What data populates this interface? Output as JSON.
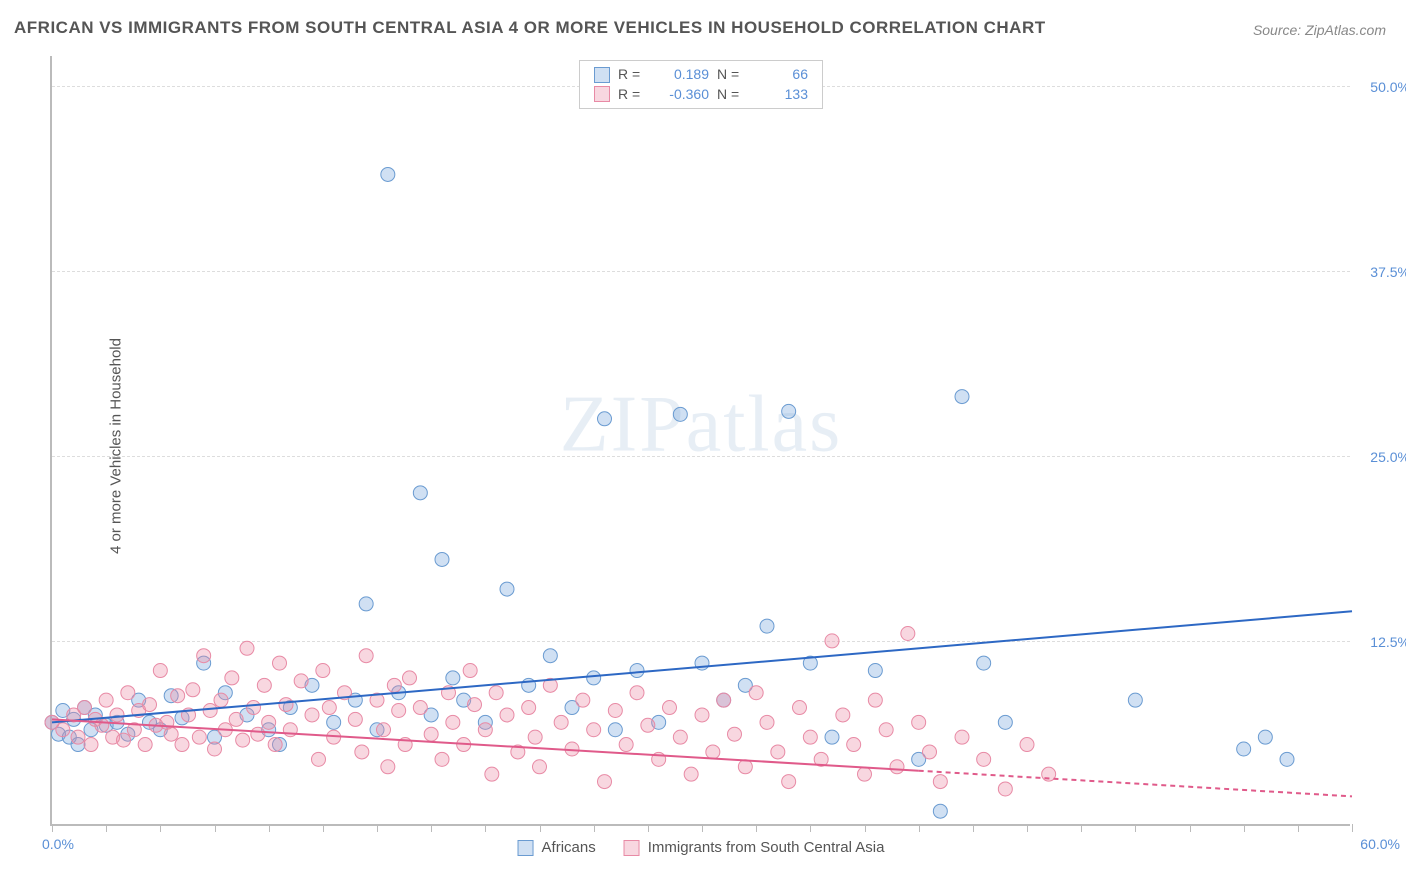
{
  "title": "AFRICAN VS IMMIGRANTS FROM SOUTH CENTRAL ASIA 4 OR MORE VEHICLES IN HOUSEHOLD CORRELATION CHART",
  "source": "Source: ZipAtlas.com",
  "y_axis_label": "4 or more Vehicles in Household",
  "watermark_a": "ZIP",
  "watermark_b": "atlas",
  "chart": {
    "type": "scatter",
    "xlim": [
      0,
      60
    ],
    "ylim": [
      0,
      52
    ],
    "x_min_label": "0.0%",
    "x_max_label": "60.0%",
    "y_ticks": [
      12.5,
      25.0,
      37.5,
      50.0
    ],
    "y_tick_labels": [
      "12.5%",
      "25.0%",
      "37.5%",
      "50.0%"
    ],
    "x_minor_ticks": [
      0,
      2.5,
      5,
      7.5,
      10,
      12.5,
      15,
      17.5,
      20,
      22.5,
      25,
      27.5,
      30,
      32.5,
      35,
      37.5,
      40,
      42.5,
      45,
      47.5,
      50,
      52.5,
      55,
      57.5,
      60
    ],
    "background_color": "#ffffff",
    "grid_color": "#dddddd",
    "series": [
      {
        "name": "Africans",
        "fill": "rgba(120,165,220,0.35)",
        "stroke": "#6a9bd1",
        "marker_radius": 7,
        "R": "0.189",
        "N": "66",
        "trend": {
          "x1": 0,
          "y1": 7.0,
          "x2": 60,
          "y2": 14.5,
          "color": "#2d68c4",
          "width": 2,
          "dash_from_x": null
        },
        "points": [
          [
            0,
            7.0
          ],
          [
            0.3,
            6.2
          ],
          [
            0.5,
            7.8
          ],
          [
            0.8,
            6.0
          ],
          [
            1,
            7.2
          ],
          [
            1.2,
            5.5
          ],
          [
            1.5,
            8.0
          ],
          [
            1.8,
            6.5
          ],
          [
            2,
            7.5
          ],
          [
            2.5,
            6.8
          ],
          [
            3,
            7.0
          ],
          [
            3.5,
            6.2
          ],
          [
            4,
            8.5
          ],
          [
            4.5,
            7.0
          ],
          [
            5,
            6.5
          ],
          [
            5.5,
            8.8
          ],
          [
            6,
            7.3
          ],
          [
            7,
            11.0
          ],
          [
            7.5,
            6.0
          ],
          [
            8,
            9.0
          ],
          [
            9,
            7.5
          ],
          [
            10,
            6.5
          ],
          [
            10.5,
            5.5
          ],
          [
            11,
            8.0
          ],
          [
            12,
            9.5
          ],
          [
            13,
            7.0
          ],
          [
            14,
            8.5
          ],
          [
            14.5,
            15.0
          ],
          [
            15,
            6.5
          ],
          [
            15.5,
            44.0
          ],
          [
            16,
            9.0
          ],
          [
            17,
            22.5
          ],
          [
            17.5,
            7.5
          ],
          [
            18,
            18.0
          ],
          [
            18.5,
            10.0
          ],
          [
            19,
            8.5
          ],
          [
            20,
            7.0
          ],
          [
            21,
            16.0
          ],
          [
            22,
            9.5
          ],
          [
            23,
            11.5
          ],
          [
            24,
            8.0
          ],
          [
            25,
            10.0
          ],
          [
            25.5,
            27.5
          ],
          [
            26,
            6.5
          ],
          [
            27,
            10.5
          ],
          [
            28,
            7.0
          ],
          [
            29,
            27.8
          ],
          [
            30,
            11.0
          ],
          [
            31,
            8.5
          ],
          [
            32,
            9.5
          ],
          [
            33,
            13.5
          ],
          [
            34,
            28.0
          ],
          [
            35,
            11.0
          ],
          [
            36,
            6.0
          ],
          [
            38,
            10.5
          ],
          [
            40,
            4.5
          ],
          [
            41,
            1.0
          ],
          [
            42,
            29.0
          ],
          [
            43,
            11.0
          ],
          [
            44,
            7.0
          ],
          [
            50,
            8.5
          ],
          [
            55,
            5.2
          ],
          [
            56,
            6.0
          ],
          [
            57,
            4.5
          ]
        ]
      },
      {
        "name": "Immigrants from South Central Asia",
        "fill": "rgba(235,140,165,0.35)",
        "stroke": "#e88aa5",
        "marker_radius": 7,
        "R": "-0.360",
        "N": "133",
        "trend": {
          "x1": 0,
          "y1": 7.2,
          "x2": 60,
          "y2": 2.0,
          "color": "#e05a8a",
          "width": 2,
          "dash_from_x": 40
        },
        "points": [
          [
            0,
            7.0
          ],
          [
            0.5,
            6.5
          ],
          [
            1,
            7.5
          ],
          [
            1.2,
            6.0
          ],
          [
            1.5,
            8.0
          ],
          [
            1.8,
            5.5
          ],
          [
            2,
            7.2
          ],
          [
            2.3,
            6.8
          ],
          [
            2.5,
            8.5
          ],
          [
            2.8,
            6.0
          ],
          [
            3,
            7.5
          ],
          [
            3.3,
            5.8
          ],
          [
            3.5,
            9.0
          ],
          [
            3.8,
            6.5
          ],
          [
            4,
            7.8
          ],
          [
            4.3,
            5.5
          ],
          [
            4.5,
            8.2
          ],
          [
            4.8,
            6.8
          ],
          [
            5,
            10.5
          ],
          [
            5.3,
            7.0
          ],
          [
            5.5,
            6.2
          ],
          [
            5.8,
            8.8
          ],
          [
            6,
            5.5
          ],
          [
            6.3,
            7.5
          ],
          [
            6.5,
            9.2
          ],
          [
            6.8,
            6.0
          ],
          [
            7,
            11.5
          ],
          [
            7.3,
            7.8
          ],
          [
            7.5,
            5.2
          ],
          [
            7.8,
            8.5
          ],
          [
            8,
            6.5
          ],
          [
            8.3,
            10.0
          ],
          [
            8.5,
            7.2
          ],
          [
            8.8,
            5.8
          ],
          [
            9,
            12.0
          ],
          [
            9.3,
            8.0
          ],
          [
            9.5,
            6.2
          ],
          [
            9.8,
            9.5
          ],
          [
            10,
            7.0
          ],
          [
            10.3,
            5.5
          ],
          [
            10.5,
            11.0
          ],
          [
            10.8,
            8.2
          ],
          [
            11,
            6.5
          ],
          [
            11.5,
            9.8
          ],
          [
            12,
            7.5
          ],
          [
            12.3,
            4.5
          ],
          [
            12.5,
            10.5
          ],
          [
            12.8,
            8.0
          ],
          [
            13,
            6.0
          ],
          [
            13.5,
            9.0
          ],
          [
            14,
            7.2
          ],
          [
            14.3,
            5.0
          ],
          [
            14.5,
            11.5
          ],
          [
            15,
            8.5
          ],
          [
            15.3,
            6.5
          ],
          [
            15.5,
            4.0
          ],
          [
            15.8,
            9.5
          ],
          [
            16,
            7.8
          ],
          [
            16.3,
            5.5
          ],
          [
            16.5,
            10.0
          ],
          [
            17,
            8.0
          ],
          [
            17.5,
            6.2
          ],
          [
            18,
            4.5
          ],
          [
            18.3,
            9.0
          ],
          [
            18.5,
            7.0
          ],
          [
            19,
            5.5
          ],
          [
            19.3,
            10.5
          ],
          [
            19.5,
            8.2
          ],
          [
            20,
            6.5
          ],
          [
            20.3,
            3.5
          ],
          [
            20.5,
            9.0
          ],
          [
            21,
            7.5
          ],
          [
            21.5,
            5.0
          ],
          [
            22,
            8.0
          ],
          [
            22.3,
            6.0
          ],
          [
            22.5,
            4.0
          ],
          [
            23,
            9.5
          ],
          [
            23.5,
            7.0
          ],
          [
            24,
            5.2
          ],
          [
            24.5,
            8.5
          ],
          [
            25,
            6.5
          ],
          [
            25.5,
            3.0
          ],
          [
            26,
            7.8
          ],
          [
            26.5,
            5.5
          ],
          [
            27,
            9.0
          ],
          [
            27.5,
            6.8
          ],
          [
            28,
            4.5
          ],
          [
            28.5,
            8.0
          ],
          [
            29,
            6.0
          ],
          [
            29.5,
            3.5
          ],
          [
            30,
            7.5
          ],
          [
            30.5,
            5.0
          ],
          [
            31,
            8.5
          ],
          [
            31.5,
            6.2
          ],
          [
            32,
            4.0
          ],
          [
            32.5,
            9.0
          ],
          [
            33,
            7.0
          ],
          [
            33.5,
            5.0
          ],
          [
            34,
            3.0
          ],
          [
            34.5,
            8.0
          ],
          [
            35,
            6.0
          ],
          [
            35.5,
            4.5
          ],
          [
            36,
            12.5
          ],
          [
            36.5,
            7.5
          ],
          [
            37,
            5.5
          ],
          [
            37.5,
            3.5
          ],
          [
            38,
            8.5
          ],
          [
            38.5,
            6.5
          ],
          [
            39,
            4.0
          ],
          [
            39.5,
            13.0
          ],
          [
            40,
            7.0
          ],
          [
            40.5,
            5.0
          ],
          [
            41,
            3.0
          ],
          [
            42,
            6.0
          ],
          [
            43,
            4.5
          ],
          [
            44,
            2.5
          ],
          [
            45,
            5.5
          ],
          [
            46,
            3.5
          ]
        ]
      }
    ]
  },
  "legend": {
    "series1_label": "Africans",
    "series2_label": "Immigrants from South Central Asia"
  }
}
